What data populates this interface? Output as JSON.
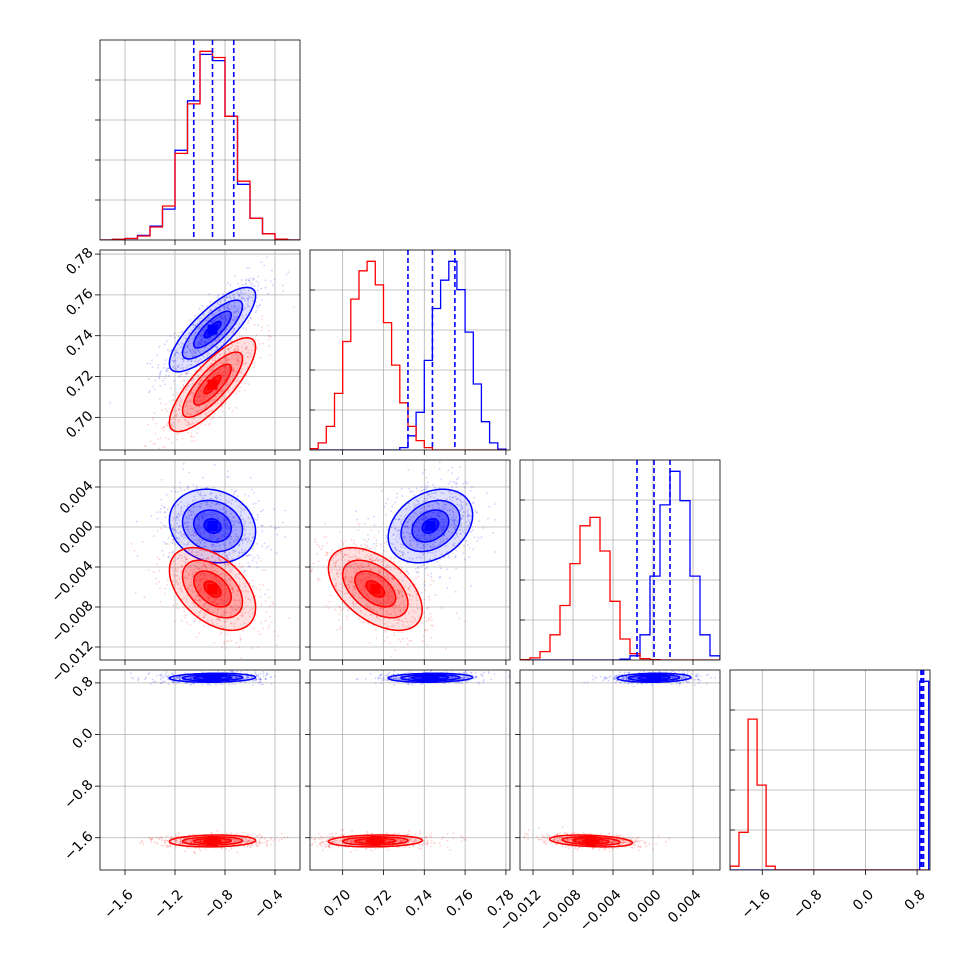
{
  "chart_data": {
    "type": "corner",
    "grid": true,
    "colors": {
      "series_a": "#0000ff",
      "series_b": "#ff0000"
    },
    "series": [
      {
        "color": "#0000ff",
        "means": [
          -0.9,
          0.743,
          0.0001,
          0.88
        ],
        "sds": [
          0.15,
          0.009,
          0.0016,
          0.03
        ],
        "corr": [
          [
            1,
            0.8,
            -0.15,
            0.1
          ],
          [
            0.8,
            1,
            0.3,
            0.1
          ],
          [
            -0.15,
            0.3,
            1,
            0.1
          ],
          [
            0.1,
            0.1,
            0.1,
            1
          ]
        ],
        "quantiles": [
          [
            -1.05,
            -0.9,
            -0.73
          ],
          [
            0.732,
            0.744,
            0.755
          ],
          [
            -0.0016,
            0.0001,
            0.0017
          ],
          [
            0.86,
            0.875,
            0.9
          ]
        ]
      },
      {
        "color": "#ff0000",
        "means": [
          -0.9,
          0.716,
          -0.0062,
          -1.65
        ],
        "sds": [
          0.15,
          0.01,
          0.0018,
          0.04
        ],
        "corr": [
          [
            1,
            0.8,
            -0.45,
            0.1
          ],
          [
            0.8,
            1,
            -0.5,
            0.1
          ],
          [
            -0.45,
            -0.5,
            1,
            -0.3
          ],
          [
            0.1,
            0.1,
            -0.3,
            1
          ]
        ]
      }
    ],
    "diagonal_histograms": [
      {
        "bin_edges": [
          -1.8,
          -1.7,
          -1.6,
          -1.5,
          -1.4,
          -1.3,
          -1.2,
          -1.1,
          -1.0,
          -0.9,
          -0.8,
          -0.7,
          -0.6,
          -0.5,
          -0.4,
          -0.3,
          -0.2
        ],
        "series_counts": [
          [
            0,
            0.2,
            0.5,
            1.5,
            4.5,
            10,
            29,
            45,
            60,
            58,
            40,
            18,
            7,
            2,
            0.3,
            0
          ],
          [
            0,
            0.2,
            0.5,
            1.3,
            4.2,
            11,
            28,
            44,
            61,
            59,
            40,
            19,
            7,
            2,
            0.3,
            0
          ]
        ]
      },
      {
        "bin_edges": [
          0.684,
          0.688,
          0.692,
          0.696,
          0.7,
          0.704,
          0.708,
          0.712,
          0.716,
          0.72,
          0.724,
          0.728,
          0.732,
          0.736,
          0.74,
          0.744,
          0.748,
          0.752,
          0.756,
          0.76,
          0.764,
          0.768,
          0.772,
          0.776,
          0.78
        ],
        "series_counts": [
          [
            0,
            0,
            0,
            0,
            0,
            0,
            0,
            0,
            0,
            0,
            0,
            0.5,
            3,
            8,
            19,
            30,
            36,
            40,
            34,
            25,
            14,
            6,
            1.5,
            0.2
          ],
          [
            0.3,
            1.5,
            5,
            12,
            23,
            32,
            38,
            40,
            35,
            27,
            18,
            10,
            5,
            2,
            0.5,
            0,
            0,
            0,
            0,
            0,
            0,
            0,
            0,
            0
          ]
        ]
      },
      {
        "bin_edges": [
          -0.0133,
          -0.0123,
          -0.0113,
          -0.0103,
          -0.0093,
          -0.0083,
          -0.0073,
          -0.0063,
          -0.0053,
          -0.0043,
          -0.0033,
          -0.0023,
          -0.0013,
          -0.0003,
          0.0007,
          0.0017,
          0.0027,
          0.0037,
          0.0047,
          0.0057,
          0.0067
        ],
        "series_counts": [
          [
            0,
            0,
            0,
            0,
            0,
            0,
            0,
            0,
            0,
            0,
            0.2,
            1,
            6,
            20,
            37,
            45,
            38,
            20,
            6,
            1,
            0.2
          ],
          [
            0.1,
            0.5,
            2,
            6,
            13,
            23,
            32,
            34,
            26,
            14,
            5,
            1.5,
            0.3,
            0.1,
            0,
            0,
            0,
            0,
            0,
            0
          ]
        ]
      },
      {
        "bin_edges": [
          -2.1,
          -1.96,
          -1.82,
          -1.68,
          -1.54,
          -1.4,
          -1.26,
          -1.12,
          -0.98,
          -0.84,
          -0.7,
          -0.56,
          -0.42,
          -0.28,
          -0.14,
          0.0,
          0.14,
          0.28,
          0.42,
          0.56,
          0.7,
          0.84,
          0.98
        ],
        "series_counts": [
          [
            0,
            0,
            0,
            0,
            0,
            0,
            0,
            0,
            0,
            0,
            0,
            0,
            0,
            0,
            0,
            0,
            0,
            0,
            0,
            0,
            0,
            1
          ],
          [
            0.02,
            0.2,
            0.8,
            0.45,
            0.02,
            0,
            0,
            0,
            0,
            0,
            0,
            0,
            0,
            0,
            0,
            0,
            0,
            0,
            0,
            0,
            0,
            0
          ]
        ]
      }
    ],
    "axes": [
      {
        "range": [
          -1.8,
          -0.2
        ],
        "ticks": [
          -1.6,
          -1.2,
          -0.8,
          -0.4
        ],
        "tick_labels": [
          "−1.6",
          "−1.2",
          "−0.8",
          "−0.4"
        ]
      },
      {
        "range": [
          0.684,
          0.782
        ],
        "ticks": [
          0.7,
          0.72,
          0.74,
          0.76,
          0.78
        ],
        "tick_labels": [
          "0.70",
          "0.72",
          "0.74",
          "0.76",
          "0.78"
        ]
      },
      {
        "range": [
          -0.0133,
          0.0067
        ],
        "ticks": [
          -0.012,
          -0.008,
          -0.004,
          0.0,
          0.004
        ],
        "tick_labels": [
          "−0.012",
          "−0.008",
          "−0.004",
          "0.000",
          "0.004"
        ]
      },
      {
        "range": [
          -2.1,
          1.0
        ],
        "ticks": [
          -1.6,
          -0.8,
          0.0,
          0.8
        ],
        "tick_labels": [
          "−1.6",
          "−0.8",
          "0.0",
          "0.8"
        ]
      }
    ],
    "diag_ytick_count": 4
  }
}
